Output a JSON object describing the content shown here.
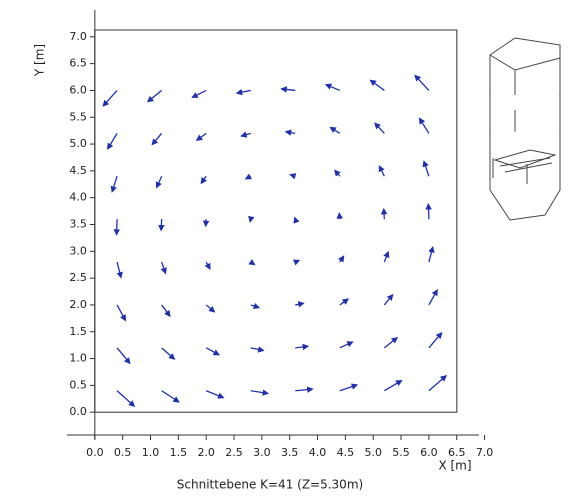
{
  "chart_data": {
    "type": "quiver",
    "caption": "Schnittebene K=41 (Z=5.30m)",
    "x_label": "X [m]",
    "y_label": "Y [m]",
    "color": "#1f2fb0",
    "xlim": [
      -0.5,
      6.9
    ],
    "ylim": [
      -0.5,
      7.5
    ],
    "xticks": [
      {
        "value": 0,
        "label": "0.0"
      },
      {
        "value": 0.5,
        "label": "0.5"
      },
      {
        "value": 1,
        "label": "1.0"
      },
      {
        "value": 1.5,
        "label": "1.5"
      },
      {
        "value": 2,
        "label": "2.0"
      },
      {
        "value": 2.5,
        "label": "2.5"
      },
      {
        "value": 3,
        "label": "3.0"
      },
      {
        "value": 3.5,
        "label": "3.5"
      },
      {
        "value": 4,
        "label": "4.0"
      },
      {
        "value": 4.5,
        "label": "4.5"
      },
      {
        "value": 5,
        "label": "5.0"
      },
      {
        "value": 5.5,
        "label": "5.5"
      },
      {
        "value": 6,
        "label": "6.0"
      },
      {
        "value": 6.5,
        "label": "6.5"
      },
      {
        "value": 7,
        "label": "7.0"
      }
    ],
    "yticks": [
      {
        "value": 0,
        "label": "0.0"
      },
      {
        "value": 0.5,
        "label": "0.5"
      },
      {
        "value": 1,
        "label": "1.0"
      },
      {
        "value": 1.5,
        "label": "1.5"
      },
      {
        "value": 2,
        "label": "2.0"
      },
      {
        "value": 2.5,
        "label": "2.5"
      },
      {
        "value": 3,
        "label": "3.0"
      },
      {
        "value": 3.5,
        "label": "3.5"
      },
      {
        "value": 4,
        "label": "4.0"
      },
      {
        "value": 4.5,
        "label": "4.5"
      },
      {
        "value": 5,
        "label": "5.0"
      },
      {
        "value": 5.5,
        "label": "5.5"
      },
      {
        "value": 6,
        "label": "6.0"
      },
      {
        "value": 6.5,
        "label": "6.5"
      },
      {
        "value": 7,
        "label": "7.0"
      }
    ],
    "x": [
      0.4,
      1.2,
      2.0,
      2.8,
      3.6,
      4.4,
      5.2,
      6.0,
      0.4,
      1.2,
      2.0,
      2.8,
      3.6,
      4.4,
      5.2,
      6.0,
      0.4,
      1.2,
      2.0,
      2.8,
      3.6,
      4.4,
      5.2,
      6.0,
      0.4,
      1.2,
      2.0,
      2.8,
      3.6,
      4.4,
      5.2,
      6.0,
      0.4,
      1.2,
      2.0,
      2.8,
      3.6,
      4.4,
      5.2,
      6.0,
      0.4,
      1.2,
      2.0,
      2.8,
      3.6,
      4.4,
      5.2,
      6.0,
      0.4,
      1.2,
      2.0,
      2.8,
      3.6,
      4.4,
      5.2,
      6.0,
      0.4,
      1.2,
      2.0,
      2.8,
      3.6,
      4.4,
      5.2,
      6.0
    ],
    "y": [
      0.4,
      0.4,
      0.4,
      0.4,
      0.4,
      0.4,
      0.4,
      0.4,
      1.2,
      1.2,
      1.2,
      1.2,
      1.2,
      1.2,
      1.2,
      1.2,
      2.0,
      2.0,
      2.0,
      2.0,
      2.0,
      2.0,
      2.0,
      2.0,
      2.8,
      2.8,
      2.8,
      2.8,
      2.8,
      2.8,
      2.8,
      2.8,
      3.6,
      3.6,
      3.6,
      3.6,
      3.6,
      3.6,
      3.6,
      3.6,
      4.4,
      4.4,
      4.4,
      4.4,
      4.4,
      4.4,
      4.4,
      4.4,
      5.2,
      5.2,
      5.2,
      5.2,
      5.2,
      5.2,
      5.2,
      5.2,
      6.0,
      6.0,
      6.0,
      6.0,
      6.0,
      6.0,
      6.0,
      6.0
    ],
    "u": [
      0.31,
      0.31,
      0.31,
      0.31,
      0.31,
      0.31,
      0.31,
      0.31,
      0.23,
      0.23,
      0.23,
      0.23,
      0.23,
      0.23,
      0.23,
      0.23,
      0.15,
      0.15,
      0.15,
      0.15,
      0.15,
      0.15,
      0.15,
      0.15,
      0.07,
      0.07,
      0.07,
      0.07,
      0.07,
      0.07,
      0.07,
      0.07,
      -0.01,
      -0.01,
      -0.01,
      -0.01,
      -0.01,
      -0.01,
      -0.01,
      -0.01,
      -0.09,
      -0.09,
      -0.09,
      -0.09,
      -0.09,
      -0.09,
      -0.09,
      -0.09,
      -0.17,
      -0.17,
      -0.17,
      -0.17,
      -0.17,
      -0.17,
      -0.17,
      -0.17,
      -0.25,
      -0.25,
      -0.25,
      -0.25,
      -0.25,
      -0.25,
      -0.25,
      -0.25
    ],
    "v": [
      -0.29,
      -0.21,
      -0.13,
      -0.05,
      0.03,
      0.11,
      0.19,
      0.28,
      -0.29,
      -0.21,
      -0.13,
      -0.05,
      0.03,
      0.11,
      0.19,
      0.28,
      -0.29,
      -0.21,
      -0.13,
      -0.05,
      0.03,
      0.11,
      0.19,
      0.28,
      -0.29,
      -0.21,
      -0.13,
      -0.05,
      0.03,
      0.11,
      0.19,
      0.28,
      -0.29,
      -0.21,
      -0.13,
      -0.05,
      0.03,
      0.11,
      0.19,
      0.28,
      -0.29,
      -0.21,
      -0.13,
      -0.05,
      0.03,
      0.11,
      0.19,
      0.28,
      -0.29,
      -0.21,
      -0.13,
      -0.05,
      0.03,
      0.11,
      0.19,
      0.28,
      -0.29,
      -0.21,
      -0.13,
      -0.05,
      0.03,
      0.11,
      0.19,
      0.28
    ]
  }
}
